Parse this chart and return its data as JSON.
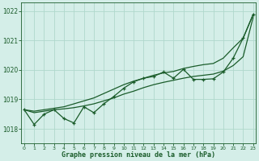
{
  "title": "Graphe pression niveau de la mer (hPa)",
  "x_ticks": [
    0,
    1,
    2,
    3,
    4,
    5,
    6,
    7,
    8,
    9,
    10,
    11,
    12,
    13,
    14,
    15,
    16,
    17,
    18,
    19,
    20,
    21,
    22,
    23
  ],
  "ylim": [
    1017.5,
    1022.3
  ],
  "yticks": [
    1018,
    1019,
    1020,
    1021,
    1022
  ],
  "background_color": "#d4eee8",
  "grid_color": "#b0d8cc",
  "line_color": "#1a5c2a",
  "hourly_data": [
    1018.65,
    1018.15,
    1018.5,
    1018.65,
    1018.35,
    1018.2,
    1018.75,
    1018.55,
    1018.85,
    1019.1,
    1019.38,
    1019.6,
    1019.72,
    1019.78,
    1019.93,
    1019.72,
    1020.02,
    1019.68,
    1019.68,
    1019.7,
    1019.93,
    1020.4,
    1021.08,
    1021.88
  ],
  "smooth_line_top": [
    1018.65,
    1018.6,
    1018.65,
    1018.7,
    1018.75,
    1018.85,
    1018.95,
    1019.05,
    1019.2,
    1019.35,
    1019.5,
    1019.62,
    1019.72,
    1019.82,
    1019.9,
    1019.95,
    1020.05,
    1020.12,
    1020.18,
    1020.22,
    1020.4,
    1020.75,
    1021.08,
    1021.88
  ],
  "smooth_line_bot": [
    1018.65,
    1018.55,
    1018.6,
    1018.65,
    1018.68,
    1018.72,
    1018.78,
    1018.85,
    1018.95,
    1019.05,
    1019.18,
    1019.28,
    1019.4,
    1019.5,
    1019.58,
    1019.65,
    1019.72,
    1019.78,
    1019.82,
    1019.86,
    1019.96,
    1020.15,
    1020.45,
    1021.78
  ]
}
